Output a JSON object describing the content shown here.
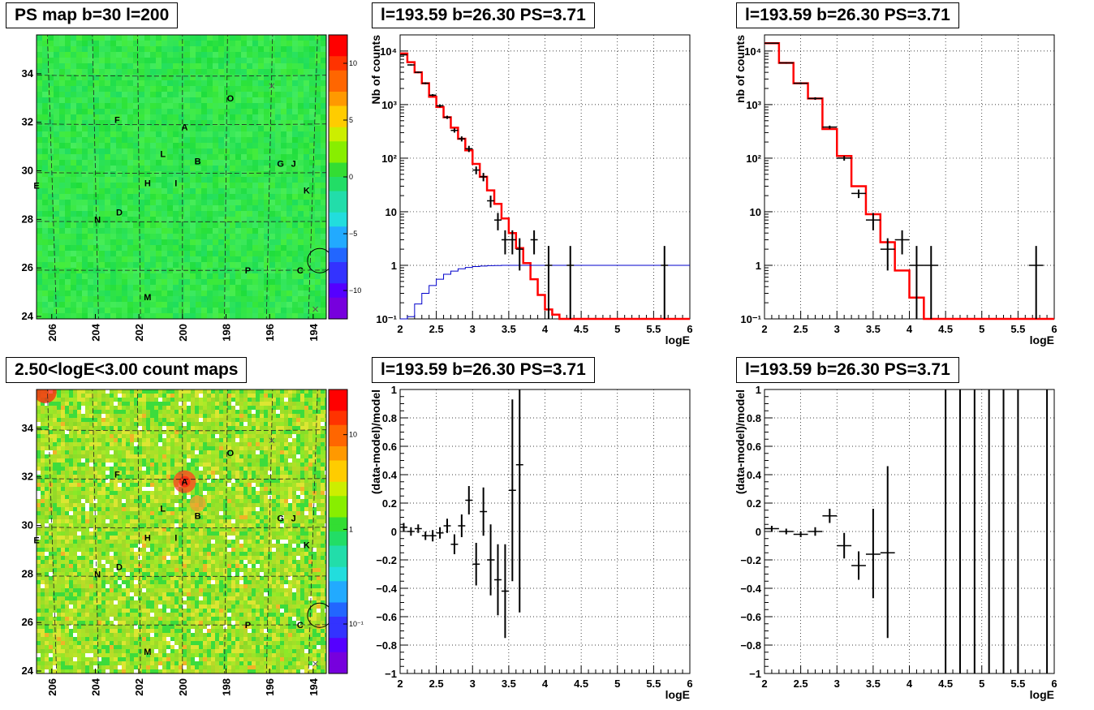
{
  "map_panels": [
    {
      "title": "PS map b=30 l=200",
      "colorbar_ticks": [
        "10",
        "5",
        "0",
        "−5",
        "−10"
      ],
      "colorbar_values": [
        10,
        5,
        0,
        -5,
        -10
      ],
      "colorbar_range": [
        -12.5,
        12.5
      ],
      "colorbar_scale": "linear",
      "xticks": [
        "206",
        "204",
        "202",
        "200",
        "198",
        "196",
        "194"
      ],
      "xtick_values": [
        206,
        204,
        202,
        200,
        198,
        196,
        194
      ],
      "yticks": [
        "34",
        "32",
        "30",
        "28",
        "26",
        "24"
      ],
      "ytick_values": [
        34,
        32,
        30,
        28,
        26,
        24
      ],
      "base_color": "#33e64d",
      "hotspot": false
    },
    {
      "title": "2.50<logE<3.00 count maps",
      "colorbar_ticks": [
        "10",
        "1",
        "10⁻¹"
      ],
      "colorbar_values": [
        10,
        1,
        0.1
      ],
      "colorbar_range": [
        0.03,
        30
      ],
      "colorbar_scale": "log",
      "xticks": [
        "206",
        "204",
        "202",
        "200",
        "198",
        "196",
        "194"
      ],
      "xtick_values": [
        206,
        204,
        202,
        200,
        198,
        196,
        194
      ],
      "yticks": [
        "34",
        "32",
        "30",
        "28",
        "26",
        "24"
      ],
      "ytick_values": [
        34,
        32,
        30,
        28,
        26,
        24
      ],
      "base_color": "#a0e030",
      "hotspot": true
    }
  ],
  "map_x_range": [
    206.7,
    193.4
  ],
  "map_y_range": [
    23.9,
    35.6
  ],
  "sources": [
    {
      "name": "O",
      "l": 197.8,
      "b": 33.0
    },
    {
      "name": "F",
      "l": 203.0,
      "b": 32.1
    },
    {
      "name": "A",
      "l": 199.9,
      "b": 31.8
    },
    {
      "name": "L",
      "l": 200.9,
      "b": 30.7
    },
    {
      "name": "B",
      "l": 199.3,
      "b": 30.4
    },
    {
      "name": "G",
      "l": 195.5,
      "b": 30.3
    },
    {
      "name": "J",
      "l": 194.9,
      "b": 30.3
    },
    {
      "name": "H",
      "l": 201.6,
      "b": 29.5
    },
    {
      "name": "I",
      "l": 200.3,
      "b": 29.5
    },
    {
      "name": "E",
      "l": 206.7,
      "b": 29.4
    },
    {
      "name": "K",
      "l": 194.3,
      "b": 29.2
    },
    {
      "name": "D",
      "l": 202.9,
      "b": 28.3
    },
    {
      "name": "N",
      "l": 203.9,
      "b": 28.0
    },
    {
      "name": "P",
      "l": 197.0,
      "b": 25.9
    },
    {
      "name": "C",
      "l": 194.6,
      "b": 25.9
    },
    {
      "name": "M",
      "l": 201.6,
      "b": 24.8
    }
  ],
  "spectrum_panels": [
    {
      "title": "l=193.59 b=26.30 PS=3.71",
      "chart_data": {
        "type": "line",
        "xlabel": "logE",
        "ylabel": "Nb of counts",
        "xlim": [
          2,
          6
        ],
        "ylim": [
          0.1,
          20000
        ],
        "yscale": "log",
        "grid": true,
        "xticks": [
          "2",
          "2.5",
          "3",
          "3.5",
          "4",
          "4.5",
          "5",
          "5.5",
          "6"
        ],
        "xtick_values": [
          2,
          2.5,
          3,
          3.5,
          4,
          4.5,
          5,
          5.5,
          6
        ],
        "yticks": [
          "10⁴",
          "10³",
          "10²",
          "10",
          "1",
          "10⁻¹"
        ],
        "ytick_values": [
          10000,
          1000,
          100,
          10,
          1,
          0.1
        ],
        "series": [
          {
            "style": "step",
            "color": "#ff0000",
            "width": 2.5,
            "edges": [
              2,
              2.1,
              2.2,
              2.3,
              2.4,
              2.5,
              2.6,
              2.7,
              2.8,
              2.9,
              3.0,
              3.1,
              3.2,
              3.3,
              3.4,
              3.5,
              3.6,
              3.7,
              3.8,
              3.9,
              4.0,
              4.1,
              4.2,
              6.0
            ],
            "values": [
              9000,
              6200,
              4000,
              2500,
              1400,
              900,
              580,
              370,
              230,
              140,
              78,
              45,
              25,
              14,
              7.5,
              4,
              2.1,
              1.1,
              0.55,
              0.28,
              0.15,
              0.12,
              0.1
            ]
          },
          {
            "style": "step",
            "color": "#0000cc",
            "width": 1,
            "edges": [
              2,
              2.1,
              2.2,
              2.3,
              2.4,
              2.5,
              2.6,
              2.7,
              2.8,
              2.9,
              3.0,
              3.1,
              3.2,
              3.3,
              3.4,
              3.5,
              6.0
            ],
            "values": [
              0.07,
              0.11,
              0.19,
              0.3,
              0.42,
              0.55,
              0.68,
              0.78,
              0.86,
              0.91,
              0.95,
              0.97,
              0.985,
              0.99,
              1,
              1
            ]
          },
          {
            "style": "errors",
            "color": "#000000",
            "x": [
              2.05,
              2.15,
              2.25,
              2.35,
              2.45,
              2.55,
              2.65,
              2.75,
              2.85,
              2.95,
              3.05,
              3.15,
              3.25,
              3.35,
              3.45,
              3.55,
              3.65,
              3.85,
              4.05,
              4.35,
              5.65
            ],
            "y": [
              8500,
              5500,
              4000,
              2500,
              1500,
              950,
              580,
              330,
              230,
              150,
              60,
              45,
              16,
              7,
              3,
              3,
              2,
              3,
              1,
              1,
              1
            ],
            "ylo": [
              8300,
              5350,
              3870,
              2400,
              1430,
              890,
              540,
              300,
              205,
              130,
              50,
              37,
              12,
              4.5,
              1.6,
              1.6,
              0.8,
              1.6,
              0.1,
              0.1,
              0.1
            ],
            "yhi": [
              8700,
              5650,
              4130,
              2600,
              1570,
              1010,
              620,
              360,
              255,
              170,
              70,
              53,
              20,
              9.5,
              4.5,
              4.5,
              3.2,
              4.5,
              2.3,
              2.3,
              2.3
            ],
            "xerr": 0.05
          }
        ]
      }
    },
    {
      "title": "l=193.59 b=26.30 PS=3.71",
      "chart_data": {
        "type": "line",
        "xlabel": "logE",
        "ylabel": "nb of counts",
        "xlim": [
          2,
          6
        ],
        "ylim": [
          0.1,
          20000
        ],
        "yscale": "log",
        "grid": true,
        "xticks": [
          "2",
          "2.5",
          "3",
          "3.5",
          "4",
          "4.5",
          "5",
          "5.5",
          "6"
        ],
        "xtick_values": [
          2,
          2.5,
          3,
          3.5,
          4,
          4.5,
          5,
          5.5,
          6
        ],
        "yticks": [
          "10⁴",
          "10³",
          "10²",
          "10",
          "1",
          "10⁻¹"
        ],
        "ytick_values": [
          10000,
          1000,
          100,
          10,
          1,
          0.1
        ],
        "series": [
          {
            "style": "step",
            "color": "#ff0000",
            "width": 2.5,
            "edges": [
              2,
              2.2,
              2.4,
              2.6,
              2.8,
              3.0,
              3.2,
              3.4,
              3.6,
              3.8,
              4.0,
              4.2,
              6.0
            ],
            "values": [
              14000,
              6000,
              2500,
              1300,
              350,
              110,
              30,
              9,
              2.7,
              0.8,
              0.25,
              0.1
            ]
          },
          {
            "style": "errors",
            "color": "#000000",
            "x": [
              2.1,
              2.3,
              2.5,
              2.7,
              2.9,
              3.1,
              3.3,
              3.5,
              3.7,
              3.9,
              4.1,
              4.3,
              5.75
            ],
            "y": [
              14000,
              6000,
              2500,
              1300,
              380,
              100,
              22,
              7,
              2,
              3,
              1,
              1,
              1
            ],
            "ylo": [
              13800,
              5850,
              2400,
              1230,
              355,
              90,
              18,
              4.5,
              0.8,
              1.6,
              0.1,
              0.1,
              0.1
            ],
            "yhi": [
              14200,
              6150,
              2600,
              1370,
              405,
              110,
              26,
              9.5,
              3.2,
              4.5,
              2.3,
              2.3,
              2.3
            ],
            "xerr": 0.1
          }
        ]
      }
    },
    {
      "title": "l=193.59 b=26.30 PS=3.71",
      "chart_data": {
        "type": "scatter",
        "xlabel": "logE",
        "ylabel": "(data-model)/model",
        "xlim": [
          2,
          6
        ],
        "ylim": [
          -1,
          1
        ],
        "yscale": "linear",
        "grid": true,
        "xticks": [
          "2",
          "2.5",
          "3",
          "3.5",
          "4",
          "4.5",
          "5",
          "5.5",
          "6"
        ],
        "xtick_values": [
          2,
          2.5,
          3,
          3.5,
          4,
          4.5,
          5,
          5.5,
          6
        ],
        "yticks": [
          "1",
          "0.8",
          "0.6",
          "0.4",
          "0.2",
          "0",
          "−0.2",
          "−0.4",
          "−0.6",
          "−0.8",
          "−1"
        ],
        "ytick_values": [
          1,
          0.8,
          0.6,
          0.4,
          0.2,
          0,
          -0.2,
          -0.4,
          -0.6,
          -0.8,
          -1
        ],
        "series": [
          {
            "style": "errors",
            "color": "#000000",
            "x": [
              2.05,
              2.15,
              2.25,
              2.35,
              2.45,
              2.55,
              2.65,
              2.75,
              2.85,
              2.95,
              3.05,
              3.15,
              3.25,
              3.35,
              3.45,
              3.55,
              3.65
            ],
            "y": [
              0.03,
              0.0,
              0.02,
              -0.03,
              -0.03,
              -0.01,
              0.04,
              -0.09,
              0.04,
              0.22,
              -0.23,
              0.14,
              -0.2,
              -0.34,
              -0.42,
              0.29,
              0.47
            ],
            "ylo": [
              0.0,
              -0.03,
              -0.01,
              -0.06,
              -0.07,
              -0.05,
              -0.01,
              -0.16,
              -0.04,
              0.12,
              -0.38,
              -0.03,
              -0.45,
              -0.59,
              -0.75,
              -0.35,
              -0.57
            ],
            "yhi": [
              0.06,
              0.03,
              0.05,
              0.0,
              0.01,
              0.03,
              0.09,
              -0.02,
              0.12,
              0.32,
              -0.08,
              0.31,
              0.05,
              -0.09,
              -0.09,
              0.93,
              1.0
            ],
            "xerr": 0.05
          }
        ]
      }
    },
    {
      "title": "l=193.59 b=26.30 PS=3.71",
      "chart_data": {
        "type": "scatter",
        "xlabel": "logE",
        "ylabel": "(data-model)/model",
        "xlim": [
          2,
          6
        ],
        "ylim": [
          -1,
          1
        ],
        "yscale": "linear",
        "grid": true,
        "xticks": [
          "2",
          "2.5",
          "3",
          "3.5",
          "4",
          "4.5",
          "5",
          "5.5",
          "6"
        ],
        "xtick_values": [
          2,
          2.5,
          3,
          3.5,
          4,
          4.5,
          5,
          5.5,
          6
        ],
        "yticks": [
          "1",
          "0.8",
          "0.6",
          "0.4",
          "0.2",
          "0",
          "−0.2",
          "−0.4",
          "−0.6",
          "−0.8",
          "−1"
        ],
        "ytick_values": [
          1,
          0.8,
          0.6,
          0.4,
          0.2,
          0,
          -0.2,
          -0.4,
          -0.6,
          -0.8,
          -1
        ],
        "series": [
          {
            "style": "errors",
            "color": "#000000",
            "x": [
              2.1,
              2.3,
              2.5,
              2.7,
              2.9,
              3.1,
              3.3,
              3.5,
              3.7
            ],
            "y": [
              0.02,
              0.0,
              -0.02,
              0.0,
              0.11,
              -0.1,
              -0.24,
              -0.16,
              -0.15
            ],
            "ylo": [
              0.0,
              -0.02,
              -0.04,
              -0.03,
              0.06,
              -0.19,
              -0.34,
              -0.47,
              -0.75
            ],
            "yhi": [
              0.04,
              0.02,
              0.0,
              0.03,
              0.16,
              -0.01,
              -0.14,
              0.16,
              0.46
            ],
            "xerr": 0.1
          },
          {
            "style": "vlines",
            "color": "#000000",
            "x": [
              4.5,
              4.7,
              4.9,
              5.1,
              5.3,
              5.5,
              5.9
            ],
            "ylo": -1,
            "yhi": 1
          }
        ]
      }
    }
  ]
}
